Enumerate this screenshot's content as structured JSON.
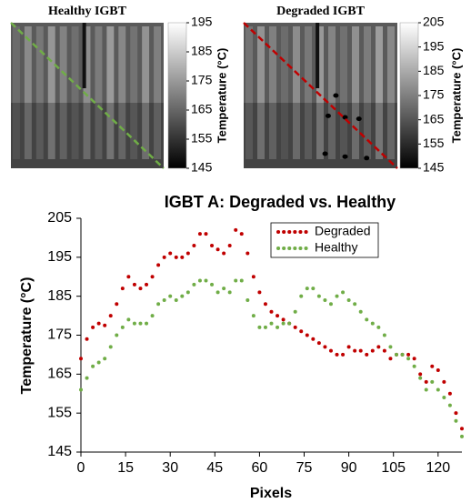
{
  "chart_data": [
    {
      "type": "heatmap-image",
      "title": "Healthy IGBT",
      "colorbar_label": "Temperature (°C)",
      "clim": [
        145,
        195
      ],
      "cticks": [
        145,
        155,
        165,
        175,
        185,
        195
      ],
      "line_color": "#70ad47"
    },
    {
      "type": "heatmap-image",
      "title": "Degraded IGBT",
      "colorbar_label": "Temperature (°C)",
      "clim": [
        145,
        205
      ],
      "cticks": [
        145,
        155,
        165,
        175,
        185,
        195,
        205
      ],
      "line_color": "#c00000"
    },
    {
      "type": "line",
      "title": "IGBT A: Degraded vs. Healthy",
      "x_label": "Pixels",
      "y_label": "Temperature (°C)",
      "xlim": [
        0,
        128
      ],
      "xticks": [
        0,
        15,
        30,
        45,
        60,
        75,
        90,
        105,
        120
      ],
      "ylim": [
        145,
        205
      ],
      "yticks": [
        145,
        155,
        165,
        175,
        185,
        195,
        205
      ],
      "legend": "upper right",
      "x": [
        0,
        2,
        4,
        6,
        8,
        10,
        12,
        14,
        16,
        18,
        20,
        22,
        24,
        26,
        28,
        30,
        32,
        34,
        36,
        38,
        40,
        42,
        44,
        46,
        48,
        50,
        52,
        54,
        56,
        58,
        60,
        62,
        64,
        66,
        68,
        70,
        72,
        74,
        76,
        78,
        80,
        82,
        84,
        86,
        88,
        90,
        92,
        94,
        96,
        98,
        100,
        102,
        104,
        106,
        108,
        110,
        112,
        114,
        116,
        118,
        120,
        122,
        124,
        126,
        128
      ],
      "series": [
        {
          "name": "Degraded",
          "color": "#c00000",
          "values": [
            169,
            174,
            177,
            178,
            177.5,
            180,
            183,
            187,
            190,
            188,
            187,
            188,
            190,
            193,
            195,
            196,
            195,
            195,
            196,
            198,
            201,
            201,
            198,
            197,
            196,
            198,
            202,
            201,
            196,
            190,
            186,
            183,
            181,
            180,
            179,
            178,
            177,
            176,
            175,
            174,
            173,
            172,
            171,
            170,
            170,
            172,
            171,
            171,
            170,
            171,
            172,
            171,
            169,
            170,
            170,
            170,
            169,
            165,
            163,
            167,
            166,
            163,
            160,
            155,
            151
          ]
        },
        {
          "name": "Healthy",
          "color": "#70ad47",
          "values": [
            161,
            164,
            167,
            168,
            169,
            172,
            175,
            177,
            179,
            178,
            178,
            178,
            180,
            183,
            184,
            185,
            184,
            185,
            186,
            188,
            189,
            189,
            188,
            186,
            187,
            186,
            189,
            189,
            184,
            180,
            177,
            177,
            178,
            177,
            178,
            178,
            181,
            185,
            187,
            187,
            185,
            184,
            183,
            185,
            186,
            184,
            183,
            181,
            179,
            178,
            177,
            175,
            172,
            170,
            170,
            169,
            167,
            164,
            161,
            163,
            161,
            159,
            157,
            153,
            149
          ]
        }
      ]
    }
  ]
}
